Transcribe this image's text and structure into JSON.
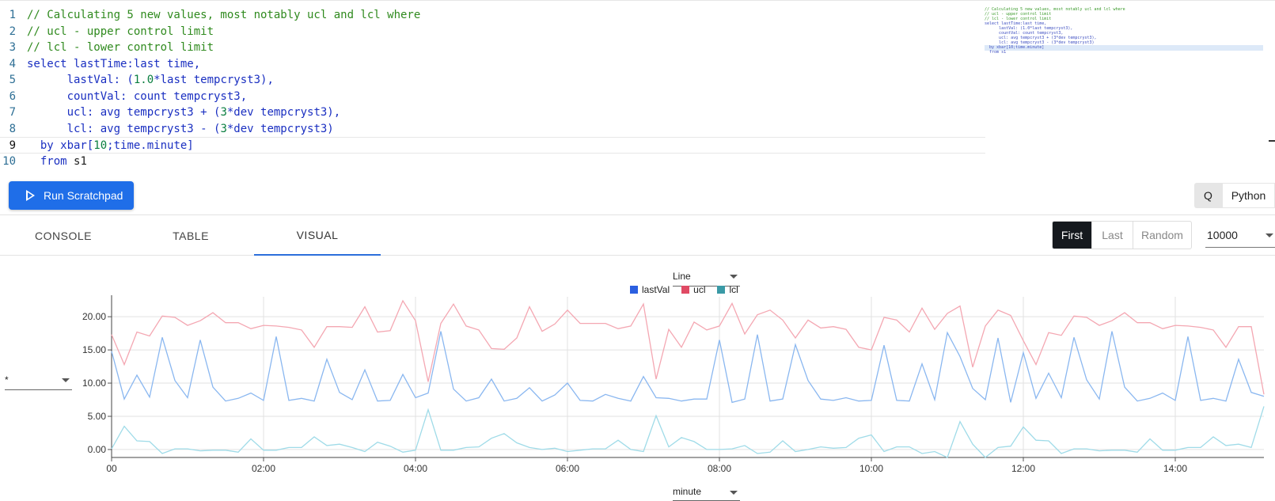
{
  "editor": {
    "lines": [
      {
        "num": "1",
        "tokens": [
          {
            "t": "// Calculating 5 new values, most notably ucl and lcl where",
            "c": "comment"
          }
        ]
      },
      {
        "num": "2",
        "tokens": [
          {
            "t": "// ucl - upper control limit",
            "c": "comment"
          }
        ]
      },
      {
        "num": "3",
        "tokens": [
          {
            "t": "// lcl - lower control limit",
            "c": "comment"
          }
        ]
      },
      {
        "num": "4",
        "tokens": [
          {
            "t": "select lastTime:last time,",
            "c": "keyword"
          }
        ]
      },
      {
        "num": "5",
        "tokens": [
          {
            "t": "      lastVal: (",
            "c": "keyword"
          },
          {
            "t": "1.0",
            "c": "number"
          },
          {
            "t": "*last tempcryst3),",
            "c": "keyword"
          }
        ]
      },
      {
        "num": "6",
        "tokens": [
          {
            "t": "      countVal: count tempcryst3,",
            "c": "keyword"
          }
        ]
      },
      {
        "num": "7",
        "tokens": [
          {
            "t": "      ucl: avg tempcryst3 + (",
            "c": "keyword"
          },
          {
            "t": "3",
            "c": "number"
          },
          {
            "t": "*dev tempcryst3),",
            "c": "keyword"
          }
        ]
      },
      {
        "num": "8",
        "tokens": [
          {
            "t": "      lcl: avg tempcryst3 - (",
            "c": "keyword"
          },
          {
            "t": "3",
            "c": "number"
          },
          {
            "t": "*dev tempcryst3)",
            "c": "keyword"
          }
        ]
      },
      {
        "num": "9",
        "tokens": [
          {
            "t": "  by xbar[",
            "c": "keyword"
          },
          {
            "t": "10",
            "c": "number"
          },
          {
            "t": ";time.minute]",
            "c": "keyword"
          }
        ]
      },
      {
        "num": "10",
        "tokens": [
          {
            "t": "  from ",
            "c": "keyword"
          },
          {
            "t": "s1",
            "c": "plain"
          }
        ]
      }
    ],
    "active_line": 9
  },
  "run_bar": {
    "run_label": "Run Scratchpad",
    "lang_q": "Q",
    "lang_python": "Python"
  },
  "tabs": [
    "CONSOLE",
    "TABLE",
    "VISUAL"
  ],
  "active_tab": "VISUAL",
  "sampling": {
    "options": [
      "First",
      "Last",
      "Random"
    ],
    "selected": "First",
    "rows": "10000"
  },
  "controls": {
    "chart_type": "Line",
    "y_axis": "*",
    "x_axis": "minute"
  },
  "colors": {
    "lastVal": "#2b5fe0",
    "ucl": "#e04a64",
    "lcl": "#3a9aa6",
    "lastVal_line": "#8ab7f0",
    "ucl_line": "#f4a7b2",
    "lcl_line": "#9fdbe8"
  },
  "chart_data": {
    "type": "line",
    "x_label": "",
    "y_label": "",
    "x_range_minutes": [
      0,
      910
    ],
    "ylim": [
      -1.2,
      23
    ],
    "y_ticks": [
      0,
      5,
      10,
      15,
      20
    ],
    "y_tick_labels": [
      "0.00",
      "5.00",
      "10.00",
      "15.00",
      "20.00"
    ],
    "x_ticks_minutes": [
      0,
      120,
      240,
      360,
      480,
      600,
      720,
      840
    ],
    "x_tick_labels": [
      "00",
      "02:00",
      "04:00",
      "06:00",
      "08:00",
      "10:00",
      "12:00",
      "14:00"
    ],
    "grid": true,
    "legend_position": "top-center",
    "x_step_minutes": 10,
    "series": [
      {
        "name": "lastVal",
        "values": [
          14.8,
          7.6,
          11.2,
          7.9,
          16.9,
          10.4,
          7.8,
          16.5,
          9.4,
          7.3,
          7.7,
          8.5,
          7.4,
          17.0,
          7.4,
          7.7,
          7.3,
          13.6,
          8.6,
          7.5,
          12.0,
          7.3,
          7.4,
          11.3,
          7.8,
          8.5,
          17.8,
          9.1,
          7.3,
          7.8,
          10.6,
          7.3,
          7.7,
          9.3,
          7.3,
          8.2,
          10.0,
          7.4,
          7.3,
          8.3,
          7.7,
          7.3,
          11.0,
          7.8,
          7.7,
          7.3,
          7.6,
          7.6,
          16.5,
          7.1,
          7.6,
          17.3,
          7.3,
          7.6,
          15.8,
          10.4,
          7.6,
          7.4,
          7.8,
          7.3,
          7.4,
          15.7,
          7.4,
          7.3,
          12.9,
          7.5,
          17.6,
          14.0,
          9.2,
          7.5,
          16.8,
          7.1,
          14.6,
          7.7,
          11.5,
          7.8,
          16.9,
          10.5,
          7.6,
          17.8,
          9.4,
          7.3,
          7.7,
          8.5,
          7.4,
          17.0,
          7.4,
          7.7,
          7.3,
          13.6,
          8.6,
          8.0
        ]
      },
      {
        "name": "ucl",
        "values": [
          17.3,
          12.8,
          17.7,
          17.1,
          20.1,
          19.9,
          18.7,
          19.4,
          20.6,
          19.1,
          19.1,
          18.2,
          18.7,
          18.6,
          18.4,
          18.0,
          15.4,
          18.5,
          18.5,
          18.4,
          21.5,
          17.7,
          17.9,
          22.4,
          19.4,
          10.2,
          19.0,
          21.9,
          18.6,
          18.0,
          15.2,
          15.1,
          16.8,
          21.5,
          17.8,
          18.9,
          21.0,
          19.0,
          19.0,
          19.0,
          18.2,
          18.6,
          21.9,
          10.6,
          18.1,
          15.4,
          19.2,
          18.0,
          18.6,
          22.0,
          17.4,
          20.3,
          21.0,
          19.5,
          16.8,
          19.5,
          18.3,
          18.5,
          18.1,
          15.4,
          15.0,
          19.9,
          19.5,
          17.7,
          21.3,
          18.1,
          20.5,
          21.6,
          12.4,
          18.6,
          21.0,
          20.2,
          16.4,
          12.8,
          17.6,
          17.2,
          20.1,
          19.9,
          18.7,
          19.4,
          20.6,
          19.1,
          19.1,
          18.2,
          18.7,
          18.6,
          18.4,
          18.0,
          15.4,
          18.5,
          18.5,
          8.3
        ]
      },
      {
        "name": "lcl",
        "values": [
          0.1,
          3.5,
          1.3,
          1.2,
          -0.6,
          0.1,
          0.1,
          -0.2,
          -0.1,
          -0.1,
          -0.4,
          1.6,
          -0.1,
          -0.1,
          0.3,
          0.3,
          1.9,
          0.6,
          0.8,
          0.3,
          -0.3,
          1.1,
          0.5,
          -0.4,
          -0.1,
          6.0,
          -0.1,
          -0.1,
          0.3,
          0.4,
          1.7,
          2.4,
          1.0,
          0.3,
          0.0,
          0.2,
          -0.3,
          -0.1,
          0.1,
          0.1,
          1.4,
          0.0,
          -0.3,
          5.1,
          0.4,
          1.8,
          1.2,
          0.0,
          0.0,
          0.1,
          0.6,
          -0.6,
          -0.4,
          1.3,
          -0.3,
          0.0,
          0.4,
          0.2,
          0.3,
          1.7,
          2.2,
          -0.3,
          0.4,
          0.4,
          -0.6,
          -0.3,
          -1.2,
          4.2,
          0.8,
          -1.2,
          0.3,
          0.5,
          3.4,
          1.4,
          1.3,
          -0.6,
          0.1,
          0.1,
          -0.2,
          -0.1,
          -0.1,
          -0.4,
          1.6,
          -0.1,
          -0.1,
          0.3,
          0.3,
          1.9,
          0.6,
          0.8,
          0.3,
          6.5
        ]
      }
    ]
  }
}
